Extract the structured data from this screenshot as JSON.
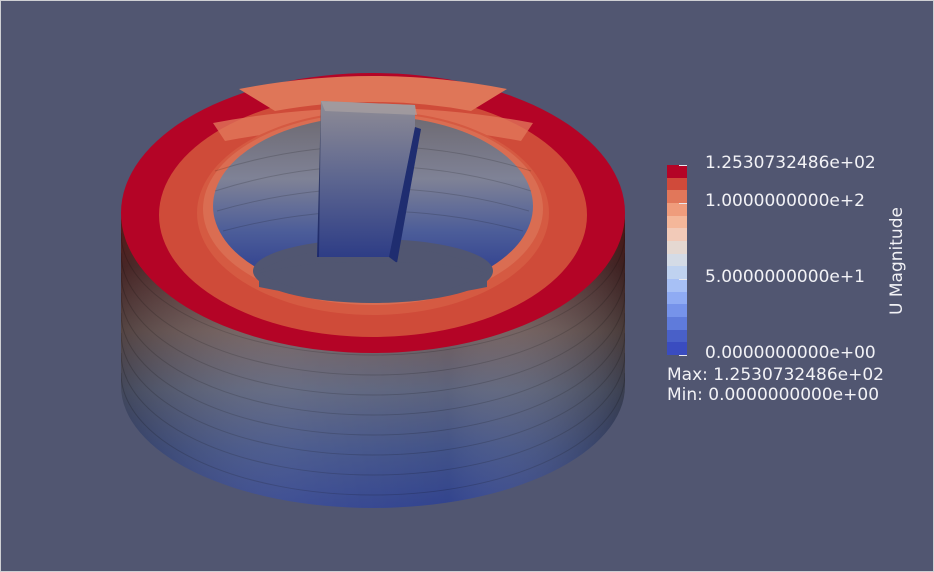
{
  "view": {
    "background_color": "#515671",
    "object": "annular-cylinder-with-vane"
  },
  "legend": {
    "title": "U Magnitude",
    "tick_labels": [
      "1.2530732486e+02",
      "1.0000000000e+2",
      "5.0000000000e+1",
      "0.0000000000e+00"
    ],
    "max_text": "Max: 1.2530732486e+02",
    "min_text": "Min: 0.0000000000e+00",
    "colors": [
      "#b40426",
      "#d04a3a",
      "#e1775a",
      "#ef9c7c",
      "#f4b79a",
      "#f2cab8",
      "#e5d8d1",
      "#d4dbe6",
      "#bfd2f0",
      "#a7c0f5",
      "#8fabf3",
      "#7693ea",
      "#5f7bdb",
      "#4960c8",
      "#3a4cc0"
    ]
  }
}
